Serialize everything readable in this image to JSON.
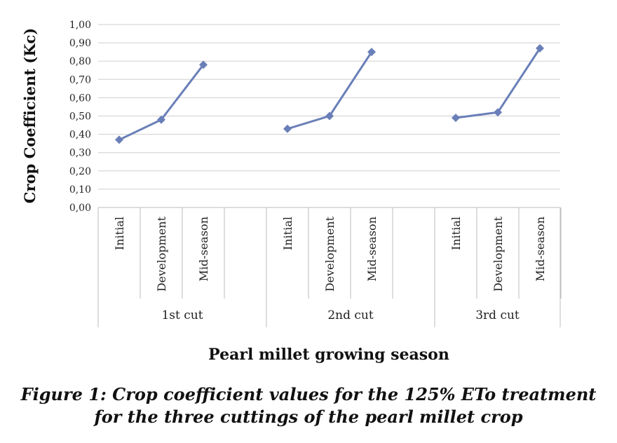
{
  "chart_data": {
    "type": "line",
    "ylabel": "Crop Coefficient (Kc)",
    "xlabel": "Pearl millet growing season",
    "ylim": [
      0,
      1
    ],
    "yticks": [
      "0,00",
      "0,10",
      "0,20",
      "0,30",
      "0,40",
      "0,50",
      "0,60",
      "0,70",
      "0,80",
      "0,90",
      "1,00"
    ],
    "grid": true,
    "line_color": "#6a7fb8",
    "groups": [
      {
        "label": "1st  cut",
        "categories": [
          "Initial",
          "Development",
          "Mid-season"
        ],
        "values": [
          0.37,
          0.48,
          0.78
        ]
      },
      {
        "label": "2nd cut",
        "categories": [
          "Initial",
          "Development",
          "Mid-season"
        ],
        "values": [
          0.43,
          0.5,
          0.85
        ]
      },
      {
        "label": "3rd cut",
        "categories": [
          "Initial",
          "Development",
          "Mid-season"
        ],
        "values": [
          0.49,
          0.52,
          0.87
        ]
      }
    ]
  },
  "caption": {
    "line1": "Figure 1: Crop coefficient values for the 125% ETo treatment",
    "line2": "for the three cuttings of the pearl millet crop"
  }
}
